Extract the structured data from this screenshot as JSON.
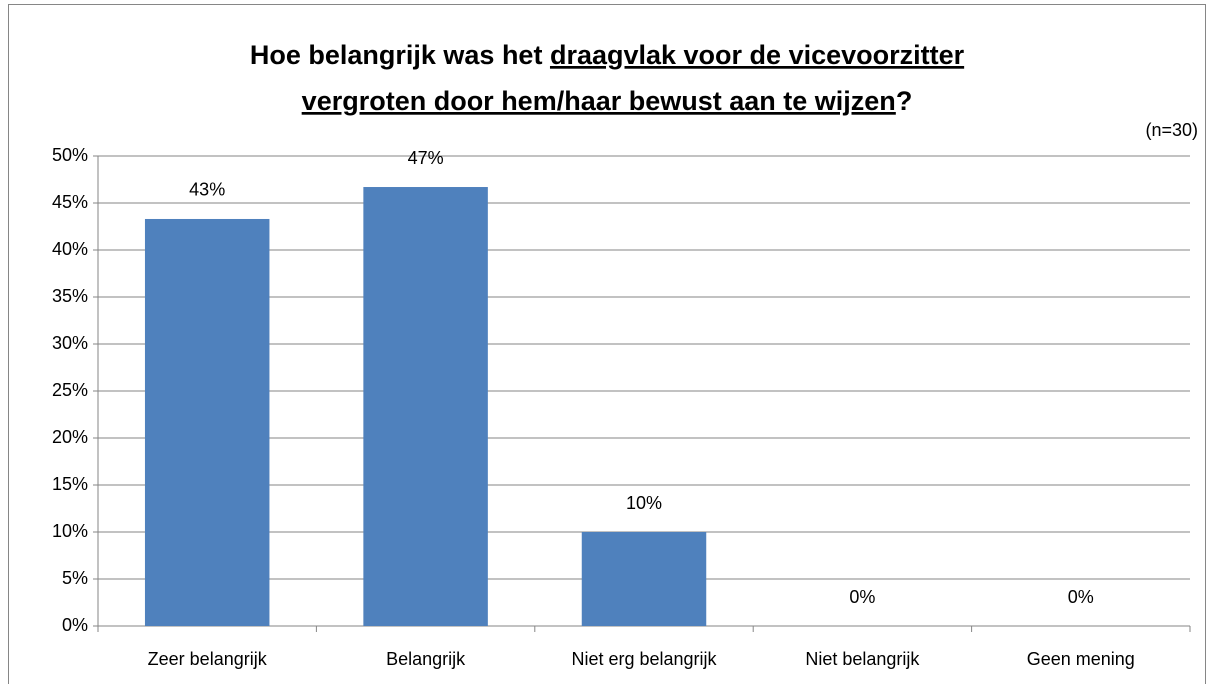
{
  "chart_data": {
    "type": "bar",
    "title_parts": [
      "Hoe belangrijk was het",
      "draagvlak voor de vicevoorzitter",
      "vergroten door hem/haar bewust aan te wijzen",
      "?"
    ],
    "title_underline": [
      false,
      true,
      true,
      false
    ],
    "subtitle": "(n=30)",
    "categories": [
      "Zeer belangrijk",
      "Belangrijk",
      "Niet erg belangrijk",
      "Niet belangrijk",
      "Geen mening"
    ],
    "values": [
      43.3,
      46.7,
      10,
      0,
      0
    ],
    "value_labels": [
      "43%",
      "47%",
      "10%",
      "0%",
      "0%"
    ],
    "color": "#4f81bd",
    "ylim": [
      0,
      50
    ],
    "yticks": [
      {
        "value": 0,
        "label": "0%"
      },
      {
        "value": 5,
        "label": "5%"
      },
      {
        "value": 10,
        "label": "10%"
      },
      {
        "value": 15,
        "label": "15%"
      },
      {
        "value": 20,
        "label": "20%"
      },
      {
        "value": 25,
        "label": "25%"
      },
      {
        "value": 30,
        "label": "30%"
      },
      {
        "value": 35,
        "label": "35%"
      },
      {
        "value": 40,
        "label": "40%"
      },
      {
        "value": 45,
        "label": "45%"
      },
      {
        "value": 50,
        "label": "50%"
      }
    ],
    "grid": true
  }
}
